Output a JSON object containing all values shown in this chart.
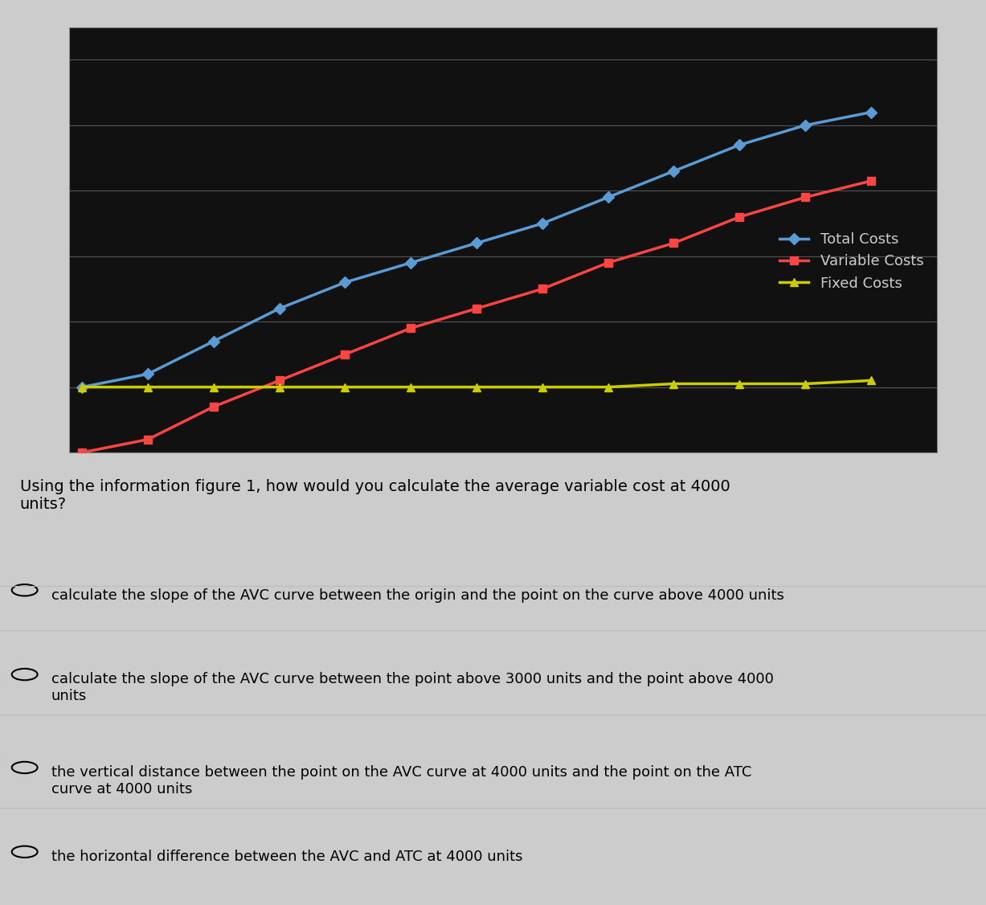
{
  "x": [
    0,
    1000,
    2000,
    3000,
    4000,
    5000,
    6000,
    7000,
    8000,
    9000,
    10000,
    11000,
    12000
  ],
  "total_costs": [
    1000,
    1200,
    1700,
    2200,
    2600,
    2900,
    3200,
    3500,
    3900,
    4300,
    4700,
    5000,
    5200
  ],
  "variable_costs": [
    0,
    200,
    700,
    1100,
    1500,
    1900,
    2200,
    2500,
    2900,
    3200,
    3600,
    3900,
    4150
  ],
  "fixed_costs": [
    1000,
    1000,
    1000,
    1000,
    1000,
    1000,
    1000,
    1000,
    1000,
    1050,
    1050,
    1050,
    1100
  ],
  "total_color": "#5B9BD5",
  "variable_color": "#FF4444",
  "fixed_color": "#CCCC00",
  "plot_bg_color": "#111111",
  "grid_color": "#555555",
  "text_color": "#CCCCCC",
  "legend_labels": [
    "Total Costs",
    "Variable Costs",
    "Fixed Costs"
  ],
  "ylim": [
    0,
    6500
  ],
  "xlim": [
    -200,
    13000
  ],
  "yticks": [
    0,
    1000,
    2000,
    3000,
    4000,
    5000,
    6000
  ],
  "xticks": [
    0,
    2000,
    4000,
    6000,
    8000,
    10000,
    12000
  ],
  "question": "Using the information figure 1, how would you calculate the average variable cost at 4000\nunits?",
  "options": [
    "calculate the slope of the AVC curve between the origin and the point on the curve above 4000 units",
    "calculate the slope of the AVC curve between the point above 3000 units and the point above 4000\nunits",
    "the vertical distance between the point on the AVC curve at 4000 units and the point on the ATC\ncurve at 4000 units",
    "the horizontal difference between the AVC and ATC at 4000 units"
  ]
}
